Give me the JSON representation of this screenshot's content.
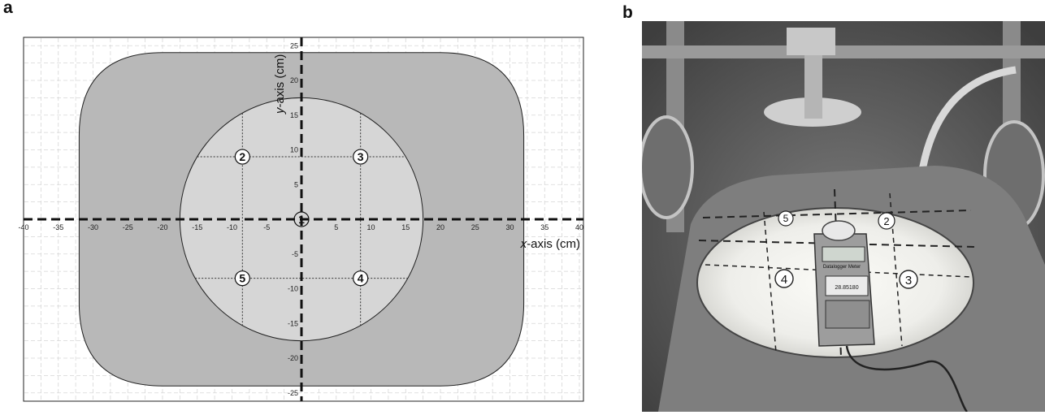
{
  "panels": {
    "a_label": "a",
    "b_label": "b"
  },
  "diagram": {
    "x_axis_title_italic": "x",
    "x_axis_title_rest": "-axis (cm)",
    "y_axis_title_italic": "y",
    "y_axis_title_rest": "-axis (cm)",
    "x_ticks": [
      -40,
      -35,
      -30,
      -25,
      -20,
      -15,
      -10,
      -5,
      5,
      10,
      15,
      20,
      25,
      30,
      35,
      40
    ],
    "y_ticks": [
      25,
      20,
      15,
      10,
      5,
      -5,
      -10,
      -15,
      -20,
      -25
    ],
    "origin_tick": "0",
    "xlim": [
      -41,
      41
    ],
    "ylim": [
      -26,
      26
    ],
    "grid_step_cm": 2.5,
    "rounded_rect": {
      "x_range": [
        -32,
        32
      ],
      "y_range": [
        -24,
        24
      ],
      "corner_radius_cm": 12,
      "fill": "#b8b8b8"
    },
    "circle": {
      "center": [
        0,
        0
      ],
      "radius_cm": 17.5,
      "fill": "#d6d6d6"
    },
    "measurement_points": [
      {
        "label": "1",
        "x": 0,
        "y": 0
      },
      {
        "label": "2",
        "x": -8.5,
        "y": 9
      },
      {
        "label": "3",
        "x": 8.5,
        "y": 9
      },
      {
        "label": "4",
        "x": 8.5,
        "y": -8.5
      },
      {
        "label": "5",
        "x": -8.5,
        "y": -8.5
      }
    ]
  },
  "photo": {
    "numbers": [
      "5",
      "2",
      "4",
      "3"
    ],
    "meter_brand": "Datalogger Meter",
    "meter_serial": "28.85180",
    "colors": {
      "background": "#5e5e5e",
      "spot": "#f4f4ef"
    }
  }
}
